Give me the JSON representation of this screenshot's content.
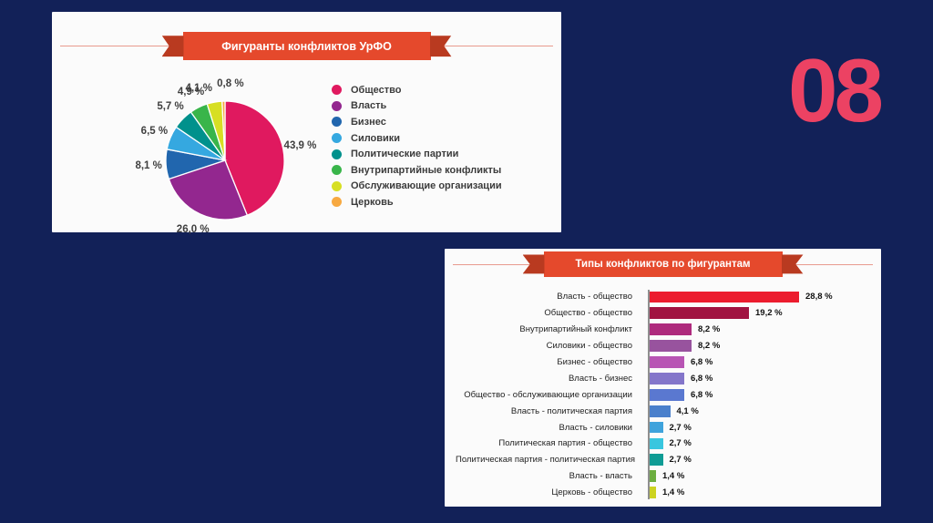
{
  "page": {
    "number": "08"
  },
  "theme": {
    "background": "#122158",
    "panel": "#fbfbfb",
    "ribbon": "#e5492c",
    "ribbon_fold": "#b93a20",
    "ribbon_line": "#e89a8e",
    "page_number_color": "#ec4263",
    "axis": "#8f8f8f"
  },
  "pie_panel": {
    "title": "Фигуранты конфликтов УрФО"
  },
  "bar_panel": {
    "title": "Типы конфликтов по фигурантам"
  },
  "chart_data": [
    {
      "type": "pie",
      "title": "Фигуранты конфликтов УрФО",
      "labels": [
        "Общество",
        "Власть",
        "Бизнес",
        "Силовики",
        "Политические партии",
        "Внутрипартийные конфликты",
        "Обслуживающие организации",
        "Церковь"
      ],
      "values": [
        43.9,
        26.0,
        8.1,
        6.5,
        5.7,
        4.9,
        4.1,
        0.8
      ],
      "value_labels": [
        "43,9 %",
        "26,0 %",
        "8,1 %",
        "6,5 %",
        "5,7 %",
        "4,9 %",
        "4,1 %",
        "0,8 %"
      ],
      "colors": [
        "#e0195f",
        "#93278f",
        "#2166ae",
        "#35a8e0",
        "#00918c",
        "#39b54a",
        "#d7df23",
        "#f7a941"
      ],
      "label_angles_deg": [
        null,
        null,
        null,
        null,
        null,
        null,
        340,
        4
      ],
      "start_angle_deg": 0,
      "direction": "clockwise",
      "legend_position": "right"
    },
    {
      "type": "bar",
      "orientation": "horizontal",
      "title": "Типы конфликтов по фигурантам",
      "categories": [
        "Власть - общество",
        "Общество - общество",
        "Внутрипартийный конфликт",
        "Силовики - общество",
        "Бизнес - общество",
        "Власть - бизнес",
        "Общество - обслуживающие организации",
        "Власть - политическая партия",
        "Власть - силовики",
        "Политическая партия - общество",
        "Политическая партия - политическая партия",
        "Власть - власть",
        "Церковь - общество"
      ],
      "values": [
        28.8,
        19.2,
        8.2,
        8.2,
        6.8,
        6.8,
        6.8,
        4.1,
        2.7,
        2.7,
        2.7,
        1.4,
        1.4
      ],
      "value_labels": [
        "28,8 %",
        "19,2 %",
        "8,2 %",
        "8,2 %",
        "6,8 %",
        "6,8 %",
        "6,8 %",
        "4,1 %",
        "2,7 %",
        "2,7 %",
        "2,7 %",
        "1,4 %",
        "1,4 %"
      ],
      "colors": [
        "#ec1c2e",
        "#a11341",
        "#ae2a7d",
        "#98539e",
        "#b855b4",
        "#8476ca",
        "#5a78d0",
        "#4a80cc",
        "#3fa3dc",
        "#38c6df",
        "#0f9c95",
        "#6cae3f",
        "#ccd320"
      ],
      "xlim": [
        0,
        30
      ],
      "grid": false,
      "legend_position": "none"
    }
  ]
}
